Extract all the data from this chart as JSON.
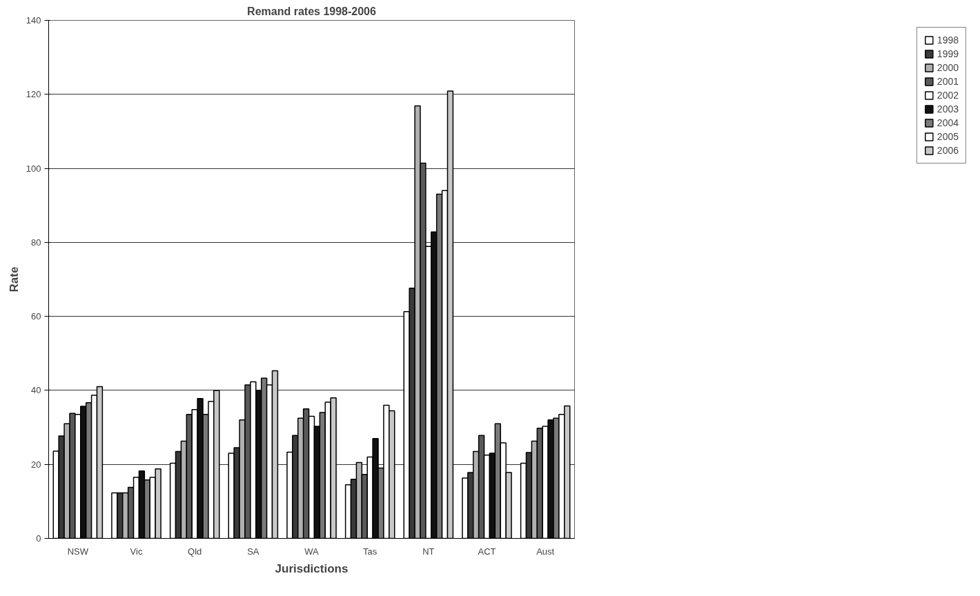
{
  "chart_data": {
    "type": "bar",
    "title": "Remand rates 1998-2006",
    "xlabel": "Jurisdictions",
    "ylabel": "Rate",
    "categories": [
      "NSW",
      "Vic",
      "Qld",
      "SA",
      "WA",
      "Tas",
      "NT",
      "ACT",
      "Aust"
    ],
    "series": [
      {
        "name": "1998",
        "color": "#ffffff",
        "values": [
          23.6,
          12.3,
          20.3,
          23,
          23.3,
          14.5,
          61.3,
          16.3,
          20.3
        ]
      },
      {
        "name": "1999",
        "color": "#3a3a3a",
        "values": [
          27.7,
          12.3,
          23.5,
          24.5,
          27.8,
          16,
          67.6,
          17.8,
          23.2
        ]
      },
      {
        "name": "2000",
        "color": "#b0b0b0",
        "values": [
          31,
          12.3,
          26.3,
          32,
          32.5,
          20.5,
          116.9,
          23.5,
          26.3
        ]
      },
      {
        "name": "2001",
        "color": "#5a5a5a",
        "values": [
          33.8,
          13.8,
          33.5,
          41.5,
          35,
          17.3,
          101.4,
          27.8,
          29.8
        ]
      },
      {
        "name": "2002",
        "color": "#ffffff",
        "values": [
          33.5,
          16.5,
          34.8,
          42.3,
          33,
          22,
          78.9,
          22.5,
          30.3
        ]
      },
      {
        "name": "2003",
        "color": "#111111",
        "values": [
          35.7,
          18.2,
          37.8,
          40,
          30.3,
          27,
          82.8,
          23,
          32
        ]
      },
      {
        "name": "2004",
        "color": "#7a7a7a",
        "values": [
          36.7,
          15.8,
          33.5,
          43.3,
          34,
          19,
          93,
          31,
          32.5
        ]
      },
      {
        "name": "2005",
        "color": "#ffffff",
        "values": [
          38.7,
          16.5,
          37,
          41.5,
          36.8,
          36,
          94,
          25.8,
          33.5
        ]
      },
      {
        "name": "2006",
        "color": "#c8c8c8",
        "values": [
          41,
          18.8,
          40,
          45.3,
          38,
          34.5,
          120.9,
          17.8,
          35.8
        ]
      }
    ],
    "ylim": [
      0,
      140
    ],
    "yticks": [
      0,
      20,
      40,
      60,
      80,
      100,
      120,
      140
    ],
    "grid": "y",
    "legend": "right"
  }
}
